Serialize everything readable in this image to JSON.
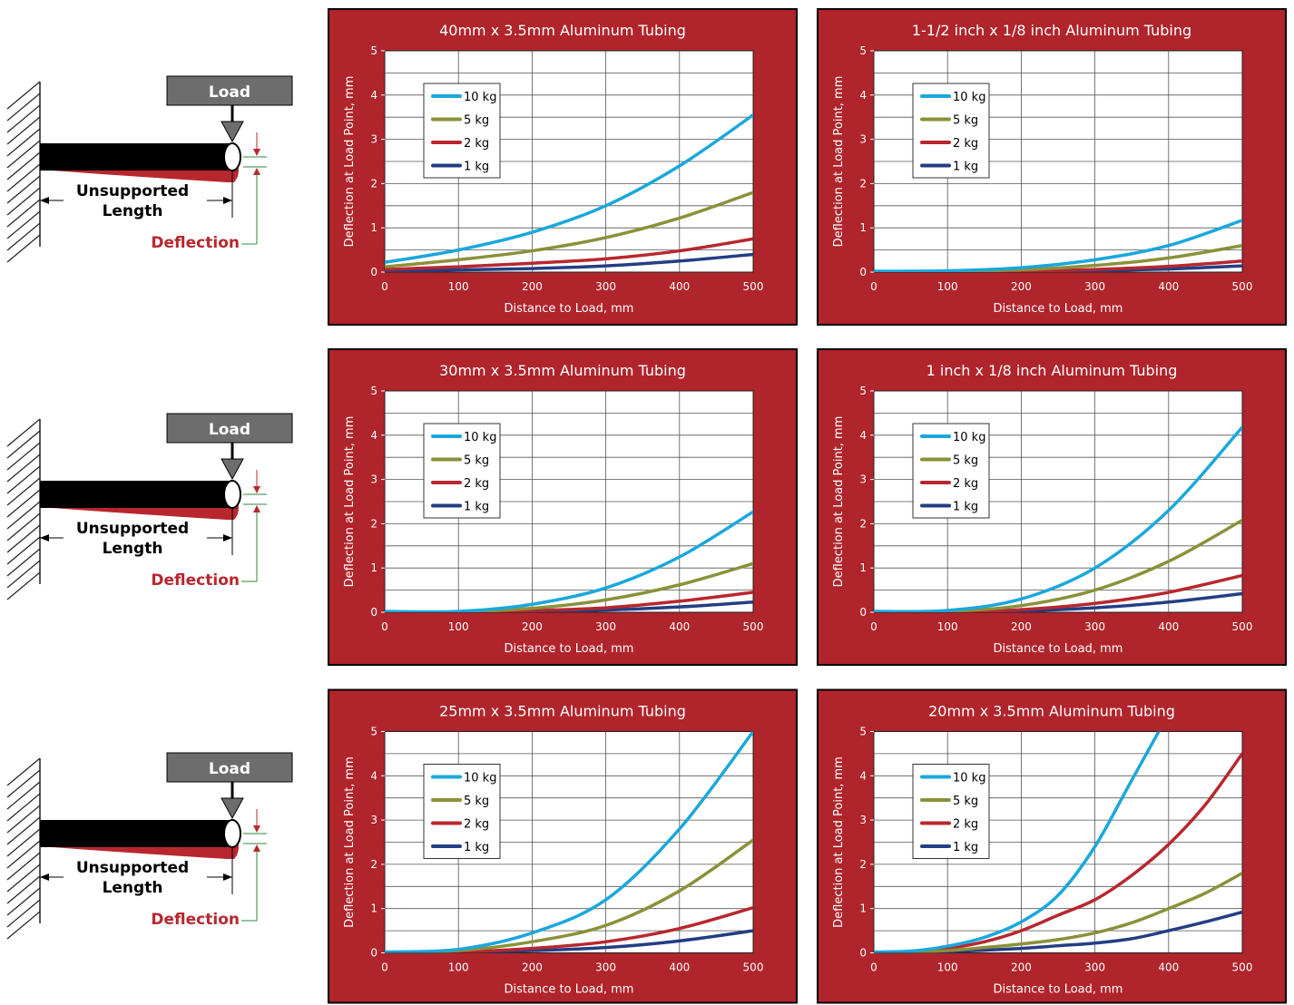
{
  "diagram": {
    "load_label": "Load",
    "length_label_line1": "Unsupported",
    "length_label_line2": "Length",
    "deflection_label": "Deflection"
  },
  "chart_data": [
    {
      "type": "line",
      "title": "40mm x 3.5mm Aluminum Tubing",
      "xlabel": "Distance to Load, mm",
      "ylabel": "Deflection at Load Point, mm",
      "xlim": [
        0,
        500
      ],
      "ylim": [
        0,
        5
      ],
      "xticks": [
        "0",
        "100",
        "200",
        "300",
        "400",
        "500"
      ],
      "yticks": [
        "0",
        "1",
        "2",
        "3",
        "4",
        "5"
      ],
      "legend_position": "top-left",
      "grid": true,
      "x": [
        0,
        100,
        200,
        300,
        400,
        500
      ],
      "series": [
        {
          "name": "10 kg",
          "color": "#1aa7dc",
          "values": [
            0.22,
            0.5,
            0.9,
            1.5,
            2.4,
            3.55
          ]
        },
        {
          "name": "5 kg",
          "color": "#8a9139",
          "values": [
            0.12,
            0.28,
            0.48,
            0.78,
            1.22,
            1.8
          ]
        },
        {
          "name": "2 kg",
          "color": "#b8272e",
          "values": [
            0.06,
            0.12,
            0.2,
            0.3,
            0.48,
            0.75
          ]
        },
        {
          "name": "1 kg",
          "color": "#233e84",
          "values": [
            0.02,
            0.05,
            0.08,
            0.14,
            0.25,
            0.4
          ]
        }
      ]
    },
    {
      "type": "line",
      "title": "1-1/2 inch x 1/8 inch Aluminum Tubing",
      "xlabel": "Distance to Load, mm",
      "ylabel": "Deflection at Load Point, mm",
      "xlim": [
        0,
        500
      ],
      "ylim": [
        0,
        5
      ],
      "xticks": [
        "0",
        "100",
        "200",
        "300",
        "400",
        "500"
      ],
      "yticks": [
        "0",
        "1",
        "2",
        "3",
        "4",
        "5"
      ],
      "legend_position": "top-left",
      "grid": true,
      "x": [
        0,
        100,
        200,
        300,
        400,
        500
      ],
      "series": [
        {
          "name": "10 kg",
          "color": "#1aa7dc",
          "values": [
            0.02,
            0.03,
            0.1,
            0.28,
            0.6,
            1.17
          ]
        },
        {
          "name": "5 kg",
          "color": "#8a9139",
          "values": [
            0.0,
            0.02,
            0.05,
            0.15,
            0.32,
            0.6
          ]
        },
        {
          "name": "2 kg",
          "color": "#b8272e",
          "values": [
            0.0,
            0.01,
            0.02,
            0.06,
            0.13,
            0.25
          ]
        },
        {
          "name": "1 kg",
          "color": "#233e84",
          "values": [
            0.0,
            0.0,
            0.01,
            0.03,
            0.07,
            0.14
          ]
        }
      ]
    },
    {
      "type": "line",
      "title": "30mm x 3.5mm Aluminum Tubing",
      "xlabel": "Distance to Load, mm",
      "ylabel": "Deflection at Load Point, mm",
      "xlim": [
        0,
        500
      ],
      "ylim": [
        0,
        5
      ],
      "xticks": [
        "0",
        "100",
        "200",
        "300",
        "400",
        "500"
      ],
      "yticks": [
        "0",
        "1",
        "2",
        "3",
        "4",
        "5"
      ],
      "legend_position": "top-left",
      "grid": true,
      "x": [
        0,
        100,
        200,
        300,
        400,
        500
      ],
      "series": [
        {
          "name": "10 kg",
          "color": "#1aa7dc",
          "values": [
            0.02,
            0.02,
            0.18,
            0.55,
            1.25,
            2.27
          ]
        },
        {
          "name": "5 kg",
          "color": "#8a9139",
          "values": [
            0.01,
            0.01,
            0.09,
            0.28,
            0.62,
            1.1
          ]
        },
        {
          "name": "2 kg",
          "color": "#b8272e",
          "values": [
            0.0,
            0.0,
            0.04,
            0.1,
            0.25,
            0.45
          ]
        },
        {
          "name": "1 kg",
          "color": "#233e84",
          "values": [
            0.0,
            0.0,
            0.02,
            0.05,
            0.12,
            0.23
          ]
        }
      ]
    },
    {
      "type": "line",
      "title": "1 inch x 1/8 inch Aluminum Tubing",
      "xlabel": "Distance to Load, mm",
      "ylabel": "Deflection at Load Point, mm",
      "xlim": [
        0,
        500
      ],
      "ylim": [
        0,
        5
      ],
      "xticks": [
        "0",
        "100",
        "200",
        "300",
        "400",
        "500"
      ],
      "yticks": [
        "0",
        "1",
        "2",
        "3",
        "4",
        "5"
      ],
      "legend_position": "top-left",
      "grid": true,
      "x": [
        0,
        100,
        200,
        300,
        400,
        500
      ],
      "series": [
        {
          "name": "10 kg",
          "color": "#1aa7dc",
          "values": [
            0.02,
            0.04,
            0.3,
            1.0,
            2.3,
            4.18
          ]
        },
        {
          "name": "5 kg",
          "color": "#8a9139",
          "values": [
            0.01,
            0.02,
            0.15,
            0.5,
            1.15,
            2.08
          ]
        },
        {
          "name": "2 kg",
          "color": "#b8272e",
          "values": [
            0.0,
            0.01,
            0.06,
            0.2,
            0.45,
            0.83
          ]
        },
        {
          "name": "1 kg",
          "color": "#233e84",
          "values": [
            0.0,
            0.0,
            0.03,
            0.1,
            0.23,
            0.42
          ]
        }
      ]
    },
    {
      "type": "line",
      "title": "25mm x 3.5mm Aluminum Tubing",
      "xlabel": "Distance to Load, mm",
      "ylabel": "Deflection at Load Point, mm",
      "xlim": [
        0,
        500
      ],
      "ylim": [
        0,
        5
      ],
      "xticks": [
        "0",
        "100",
        "200",
        "300",
        "400",
        "500"
      ],
      "yticks": [
        "0",
        "1",
        "2",
        "3",
        "4",
        "5"
      ],
      "legend_position": "top-left",
      "grid": true,
      "x": [
        0,
        100,
        200,
        300,
        400,
        500
      ],
      "series": [
        {
          "name": "10 kg",
          "color": "#1aa7dc",
          "values": [
            0.02,
            0.08,
            0.45,
            1.2,
            2.8,
            5.0
          ]
        },
        {
          "name": "5 kg",
          "color": "#8a9139",
          "values": [
            0.01,
            0.05,
            0.25,
            0.62,
            1.4,
            2.55
          ]
        },
        {
          "name": "2 kg",
          "color": "#b8272e",
          "values": [
            0.0,
            0.02,
            0.1,
            0.25,
            0.55,
            1.02
          ]
        },
        {
          "name": "1 kg",
          "color": "#233e84",
          "values": [
            0.0,
            0.01,
            0.05,
            0.12,
            0.27,
            0.5
          ]
        }
      ]
    },
    {
      "type": "line",
      "title": "20mm x 3.5mm Aluminum Tubing",
      "xlabel": "Distance to Load, mm",
      "ylabel": "Deflection at Load Point, mm",
      "xlim": [
        0,
        500
      ],
      "ylim": [
        0,
        5
      ],
      "xticks": [
        "0",
        "100",
        "200",
        "300",
        "400",
        "500"
      ],
      "yticks": [
        "0",
        "1",
        "2",
        "3",
        "4",
        "5"
      ],
      "legend_position": "top-left",
      "grid": true,
      "x": [
        0,
        50,
        100,
        150,
        200,
        250,
        300,
        350,
        400,
        450,
        500
      ],
      "series": [
        {
          "name": "10 kg",
          "color": "#1aa7dc",
          "values": [
            0.02,
            0.04,
            0.15,
            0.35,
            0.7,
            1.3,
            2.4,
            3.9,
            null,
            null,
            null
          ]
        },
        {
          "name": "5 kg",
          "color": "#8a9139",
          "values": [
            0.01,
            0.02,
            0.05,
            0.12,
            0.2,
            0.3,
            0.45,
            0.68,
            1.0,
            1.35,
            1.8
          ]
        },
        {
          "name": "2 kg",
          "color": "#b8272e",
          "values": [
            0.01,
            0.03,
            0.1,
            0.25,
            0.5,
            0.85,
            1.2,
            1.75,
            2.45,
            3.35,
            4.5
          ]
        },
        {
          "name": "1 kg",
          "color": "#233e84",
          "values": [
            0.0,
            0.01,
            0.03,
            0.06,
            0.1,
            0.16,
            0.22,
            0.32,
            0.5,
            0.7,
            0.92
          ]
        }
      ]
    }
  ]
}
